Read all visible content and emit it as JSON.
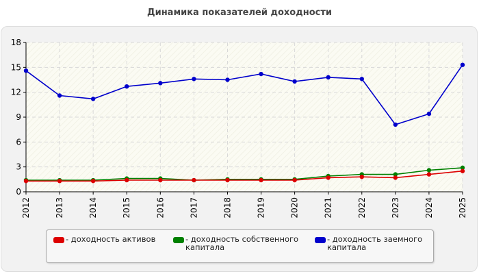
{
  "title": "Динамика показателей доходности",
  "chart_data": {
    "type": "line",
    "title": "Динамика показателей доходности",
    "xlabel": "",
    "ylabel": "",
    "x": [
      "2012",
      "2013",
      "2014",
      "2015",
      "2016",
      "2017",
      "2018",
      "2019",
      "2020",
      "2021",
      "2022",
      "2023",
      "2024",
      "2025"
    ],
    "ylim": [
      0,
      18
    ],
    "yticks": [
      "0",
      "3",
      "6",
      "9",
      "12",
      "15",
      "18"
    ],
    "grid": true,
    "legend_position": "bottom",
    "series": [
      {
        "name": "- доходность заемного капитала",
        "color": "#0000cc",
        "values": [
          14.6,
          11.6,
          11.2,
          12.7,
          13.1,
          13.6,
          13.5,
          14.2,
          13.3,
          13.8,
          13.6,
          8.1,
          9.4,
          15.3
        ]
      },
      {
        "name": "- доходность собственного капитала",
        "color": "#008000",
        "values": [
          1.4,
          1.4,
          1.4,
          1.6,
          1.6,
          1.4,
          1.5,
          1.5,
          1.5,
          1.9,
          2.1,
          2.1,
          2.6,
          2.9
        ]
      },
      {
        "name": "- доходность активов",
        "color": "#dd0000",
        "values": [
          1.3,
          1.3,
          1.3,
          1.4,
          1.4,
          1.4,
          1.4,
          1.4,
          1.4,
          1.7,
          1.8,
          1.7,
          2.1,
          2.5
        ]
      }
    ]
  },
  "legend": [
    {
      "label": "- доходность активов",
      "color": "#dd0000"
    },
    {
      "label": "- доходность собственного капитала",
      "color": "#008000"
    },
    {
      "label": "- доходность заемного капитала",
      "color": "#0000cc"
    }
  ]
}
